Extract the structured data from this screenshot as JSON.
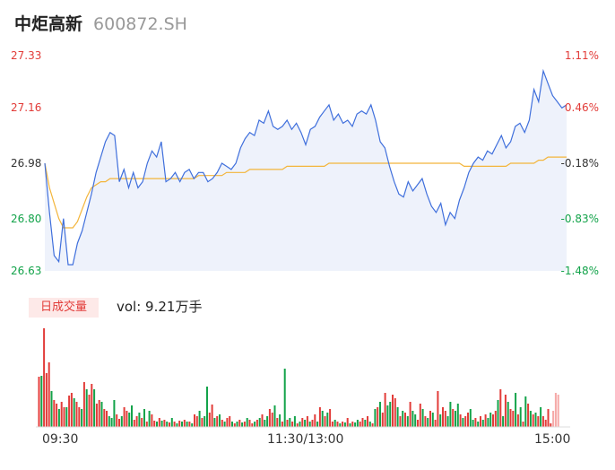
{
  "stock": {
    "name": "中炬高新",
    "code": "600872.SH"
  },
  "colors": {
    "up": "#e23c39",
    "down": "#13a34a",
    "neutral": "#333333",
    "price_line": "#3f6fdc",
    "avg_line": "#f3b53b",
    "area_fill": "#eef2fb"
  },
  "volume_panel": {
    "badge": "日成交量",
    "volume_text": "vol: 9.21万手"
  },
  "chart_data": [
    {
      "type": "line",
      "ylim": [
        26.63,
        27.33
      ],
      "y_ticks": [
        {
          "price": "27.33",
          "pct": "1.11%",
          "dir": "up"
        },
        {
          "price": "27.16",
          "pct": "0.46%",
          "dir": "up"
        },
        {
          "price": "26.98",
          "pct": "-0.18%",
          "dir": "flat"
        },
        {
          "price": "26.80",
          "pct": "-0.83%",
          "dir": "down"
        },
        {
          "price": "26.63",
          "pct": "-1.48%",
          "dir": "down"
        }
      ],
      "x_ticks": [
        "09:30",
        "11:30/13:00",
        "15:00"
      ],
      "series": [
        {
          "values": [
            26.98,
            26.82,
            26.68,
            26.66,
            26.8,
            26.65,
            26.65,
            26.72,
            26.76,
            26.82,
            26.88,
            26.95,
            27.0,
            27.05,
            27.08,
            27.07,
            26.92,
            26.96,
            26.9,
            26.95,
            26.9,
            26.92,
            26.98,
            27.02,
            27.0,
            27.05,
            26.92,
            26.93,
            26.95,
            26.92,
            26.95,
            26.96,
            26.93,
            26.95,
            26.95,
            26.92,
            26.93,
            26.95,
            26.98,
            26.97,
            26.96,
            26.98,
            27.03,
            27.06,
            27.08,
            27.07,
            27.12,
            27.11,
            27.15,
            27.1,
            27.09,
            27.1,
            27.12,
            27.09,
            27.11,
            27.08,
            27.04,
            27.09,
            27.1,
            27.13,
            27.15,
            27.17,
            27.12,
            27.14,
            27.11,
            27.12,
            27.1,
            27.14,
            27.15,
            27.14,
            27.17,
            27.12,
            27.05,
            27.03,
            26.97,
            26.92,
            26.88,
            26.87,
            26.92,
            26.89,
            26.91,
            26.93,
            26.88,
            26.84,
            26.82,
            26.85,
            26.78,
            26.82,
            26.8,
            26.86,
            26.9,
            26.95,
            26.98,
            27.0,
            26.99,
            27.02,
            27.01,
            27.04,
            27.07,
            27.03,
            27.05,
            27.1,
            27.11,
            27.08,
            27.12,
            27.22,
            27.18,
            27.28,
            27.24,
            27.2,
            27.18,
            27.16,
            27.17
          ],
          "color": "#3f6fdc"
        },
        {
          "values": [
            26.98,
            26.9,
            26.85,
            26.8,
            26.77,
            26.77,
            26.77,
            26.79,
            26.83,
            26.87,
            26.9,
            26.91,
            26.92,
            26.92,
            26.93,
            26.93,
            26.93,
            26.93,
            26.93,
            26.93,
            26.93,
            26.93,
            26.93,
            26.93,
            26.93,
            26.93,
            26.93,
            26.93,
            26.93,
            26.93,
            26.93,
            26.93,
            26.93,
            26.94,
            26.94,
            26.94,
            26.94,
            26.94,
            26.94,
            26.95,
            26.95,
            26.95,
            26.95,
            26.95,
            26.96,
            26.96,
            26.96,
            26.96,
            26.96,
            26.96,
            26.96,
            26.96,
            26.97,
            26.97,
            26.97,
            26.97,
            26.97,
            26.97,
            26.97,
            26.97,
            26.97,
            26.98,
            26.98,
            26.98,
            26.98,
            26.98,
            26.98,
            26.98,
            26.98,
            26.98,
            26.98,
            26.98,
            26.98,
            26.98,
            26.98,
            26.98,
            26.98,
            26.98,
            26.98,
            26.98,
            26.98,
            26.98,
            26.98,
            26.98,
            26.98,
            26.98,
            26.98,
            26.98,
            26.98,
            26.98,
            26.97,
            26.97,
            26.97,
            26.97,
            26.97,
            26.97,
            26.97,
            26.97,
            26.97,
            26.97,
            26.98,
            26.98,
            26.98,
            26.98,
            26.98,
            26.98,
            26.99,
            26.99,
            27.0,
            27.0,
            27.0,
            27.0,
            27.0
          ],
          "color": "#f3b53b"
        }
      ]
    },
    {
      "type": "bar",
      "ylim": [
        0,
        110
      ],
      "values": [
        56,
        57,
        110,
        60,
        72,
        40,
        30,
        26,
        20,
        28,
        22,
        22,
        35,
        38,
        32,
        28,
        22,
        20,
        50,
        42,
        36,
        48,
        42,
        26,
        30,
        28,
        20,
        18,
        12,
        10,
        30,
        14,
        9,
        12,
        22,
        18,
        16,
        24,
        8,
        12,
        16,
        10,
        20,
        6,
        18,
        14,
        7,
        6,
        10,
        7,
        8,
        6,
        5,
        10,
        6,
        4,
        7,
        6,
        8,
        6,
        6,
        4,
        14,
        12,
        18,
        10,
        12,
        45,
        16,
        25,
        10,
        12,
        14,
        8,
        6,
        10,
        12,
        6,
        4,
        6,
        8,
        5,
        6,
        10,
        8,
        4,
        6,
        8,
        10,
        14,
        8,
        12,
        20,
        16,
        24,
        10,
        14,
        6,
        65,
        8,
        10,
        6,
        12,
        4,
        6,
        10,
        8,
        12,
        6,
        8,
        14,
        6,
        22,
        18,
        12,
        16,
        20,
        6,
        8,
        6,
        4,
        6,
        5,
        10,
        4,
        6,
        5,
        8,
        6,
        10,
        8,
        12,
        6,
        4,
        20,
        22,
        28,
        16,
        38,
        24,
        28,
        36,
        32,
        22,
        12,
        18,
        16,
        12,
        28,
        18,
        14,
        8,
        26,
        20,
        12,
        10,
        18,
        16,
        8,
        40,
        14,
        22,
        18,
        12,
        28,
        20,
        18,
        26,
        14,
        10,
        12,
        16,
        20,
        8,
        10,
        6,
        12,
        8,
        14,
        10,
        16,
        14,
        18,
        30,
        42,
        12,
        36,
        28,
        20,
        18,
        38,
        14,
        22,
        6,
        34,
        26,
        18,
        14,
        16,
        12,
        22,
        12,
        8,
        20,
        4,
        18,
        38,
        36
      ],
      "dirs": [
        "u",
        "d",
        "u",
        "u",
        "u",
        "d",
        "u",
        "u",
        "d",
        "u",
        "u",
        "d",
        "u",
        "u",
        "d",
        "u",
        "u",
        "d",
        "u",
        "d",
        "u",
        "u",
        "d",
        "u",
        "u",
        "d",
        "u",
        "u",
        "d",
        "d",
        "d",
        "u",
        "u",
        "d",
        "u",
        "u",
        "d",
        "d",
        "u",
        "u",
        "d",
        "u",
        "d",
        "u",
        "d",
        "u",
        "u",
        "d",
        "u",
        "d",
        "u",
        "d",
        "u",
        "d",
        "u",
        "d",
        "u",
        "d",
        "u",
        "d",
        "u",
        "d",
        "u",
        "u",
        "d",
        "u",
        "d",
        "d",
        "u",
        "u",
        "d",
        "u",
        "d",
        "u",
        "d",
        "u",
        "u",
        "d",
        "u",
        "d",
        "u",
        "d",
        "u",
        "d",
        "u",
        "u",
        "d",
        "u",
        "d",
        "u",
        "d",
        "d",
        "u",
        "u",
        "d",
        "u",
        "d",
        "u",
        "d",
        "u",
        "d",
        "u",
        "d",
        "u",
        "d",
        "u",
        "d",
        "u",
        "d",
        "u",
        "u",
        "d",
        "u",
        "d",
        "u",
        "d",
        "u",
        "u",
        "d",
        "u",
        "d",
        "u",
        "d",
        "u",
        "d",
        "u",
        "d",
        "d",
        "u",
        "u",
        "d",
        "u",
        "d",
        "u",
        "d",
        "u",
        "d",
        "u",
        "u",
        "d",
        "d",
        "u",
        "u",
        "d",
        "u",
        "d",
        "u",
        "d",
        "u",
        "d",
        "d",
        "u",
        "u",
        "d",
        "u",
        "d",
        "u",
        "d",
        "u",
        "u",
        "d",
        "u",
        "u",
        "d",
        "d",
        "u",
        "d",
        "d",
        "u",
        "d",
        "u",
        "u",
        "d",
        "d",
        "u",
        "d",
        "u",
        "d",
        "u",
        "d",
        "d",
        "u",
        "u",
        "d",
        "u",
        "d",
        "u",
        "d",
        "u",
        "u",
        "d",
        "u",
        "d",
        "u",
        "d",
        "u",
        "d",
        "u",
        "d",
        "u",
        "d",
        "u",
        "u",
        "u",
        "u",
        "n"
      ]
    }
  ]
}
